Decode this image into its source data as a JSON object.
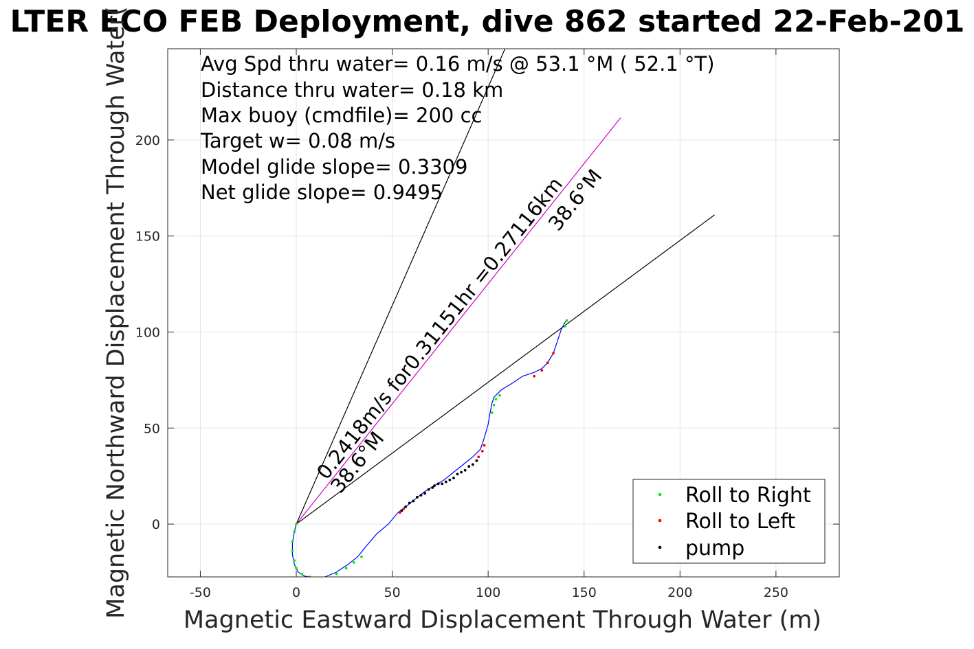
{
  "chart_data": {
    "type": "line",
    "title": "LTER ECO FEB Deployment, dive 862 started 22-Feb-201",
    "xlabel": "Magnetic Eastward Displacement Through Water (m)",
    "ylabel": "Magnetic Northward Displacement Through Water(",
    "xlim": [
      -67,
      283
    ],
    "ylim": [
      -27.5,
      247.5
    ],
    "x_ticks": [
      -50,
      0,
      50,
      100,
      150,
      200,
      250
    ],
    "y_ticks": [
      0,
      50,
      100,
      150,
      200
    ],
    "x_tick_labels": [
      "-50",
      "0",
      "50",
      "100",
      "150",
      "200",
      "250"
    ],
    "y_tick_labels": [
      "0",
      "50",
      "100",
      "150",
      "200"
    ],
    "grid": true,
    "legend_position": "bottom-right",
    "annotations": [
      "Avg Spd thru water=  0.16 m/s @  53.1 °M ( 52.1 °T)",
      "Distance thru water=  0.18 km",
      "Max buoy (cmdfile)= 200 cc",
      "Target w= 0.08 m/s",
      "Model glide slope= 0.3309",
      "Net glide slope= 0.9495"
    ],
    "line_labels": {
      "current_vector": "0.2418m/s for0.31151hr =0.27116km",
      "heading_low": "38.6°M",
      "heading_high": "38.6°M"
    },
    "reference_lines": [
      {
        "name": "glide-envelope-steep",
        "x": [
          0,
          109
        ],
        "y": [
          0,
          248
        ],
        "color": "#000000"
      },
      {
        "name": "glide-envelope-shallow",
        "x": [
          0,
          218
        ],
        "y": [
          0,
          161
        ],
        "color": "#000000"
      },
      {
        "name": "current-vector",
        "x": [
          0,
          169
        ],
        "y": [
          0,
          211.5
        ],
        "color": "#cc00cc"
      }
    ],
    "series": [
      {
        "name": "track",
        "color": "#0000ff",
        "x": [
          0,
          -1,
          -2,
          -2,
          -1,
          1,
          4,
          9,
          15,
          21,
          27,
          32,
          36,
          42,
          48,
          53,
          57,
          62,
          67,
          72,
          77,
          82,
          87,
          92,
          96,
          98,
          100,
          101,
          102,
          103,
          105,
          107,
          112,
          118,
          124,
          128,
          131,
          134,
          136,
          138,
          140,
          141
        ],
        "y": [
          0,
          -4,
          -10,
          -16,
          -21,
          -25,
          -27,
          -28,
          -27.5,
          -25,
          -21,
          -17,
          -12,
          -5,
          0,
          6,
          9,
          13,
          17,
          20,
          23,
          27,
          31,
          35,
          39,
          45,
          52,
          58,
          63,
          66,
          68,
          70,
          73,
          77,
          79,
          81,
          84,
          89,
          95,
          101,
          105,
          106
        ]
      }
    ],
    "markers": {
      "roll_right": {
        "name": "Roll to Right",
        "color": "#00ee00",
        "points": [
          [
            0,
            0
          ],
          [
            -1,
            -4
          ],
          [
            -2,
            -9
          ],
          [
            -2,
            -14
          ],
          [
            -1,
            -19
          ],
          [
            0,
            -23
          ],
          [
            3,
            -26
          ],
          [
            7,
            -27.5
          ],
          [
            12,
            -28
          ],
          [
            16,
            -28
          ],
          [
            21,
            -26
          ],
          [
            26,
            -23
          ],
          [
            30,
            -20
          ],
          [
            34,
            -17
          ],
          [
            102,
            58
          ],
          [
            103,
            62
          ],
          [
            104,
            65
          ],
          [
            106,
            67
          ],
          [
            140,
            103
          ],
          [
            141,
            106
          ]
        ]
      },
      "roll_left": {
        "name": "Roll to Left",
        "color": "#ff0000",
        "points": [
          [
            54,
            6
          ],
          [
            56,
            8
          ],
          [
            95,
            35
          ],
          [
            97,
            38
          ],
          [
            98,
            41
          ],
          [
            124,
            77
          ],
          [
            128,
            80
          ],
          [
            131,
            84
          ],
          [
            134,
            89
          ]
        ]
      },
      "pump": {
        "name": "pump",
        "color": "#000000",
        "points": [
          [
            55,
            7
          ],
          [
            57,
            9
          ],
          [
            59,
            11
          ],
          [
            61,
            12
          ],
          [
            63,
            14
          ],
          [
            65,
            15
          ],
          [
            67,
            16
          ],
          [
            69,
            18
          ],
          [
            71,
            19
          ],
          [
            72,
            20
          ],
          [
            74,
            21
          ],
          [
            76,
            21
          ],
          [
            78,
            22
          ],
          [
            80,
            23
          ],
          [
            82,
            24
          ],
          [
            84,
            26
          ],
          [
            86,
            27
          ],
          [
            88,
            28
          ],
          [
            90,
            30
          ],
          [
            92,
            31
          ],
          [
            94,
            33
          ]
        ]
      }
    }
  }
}
